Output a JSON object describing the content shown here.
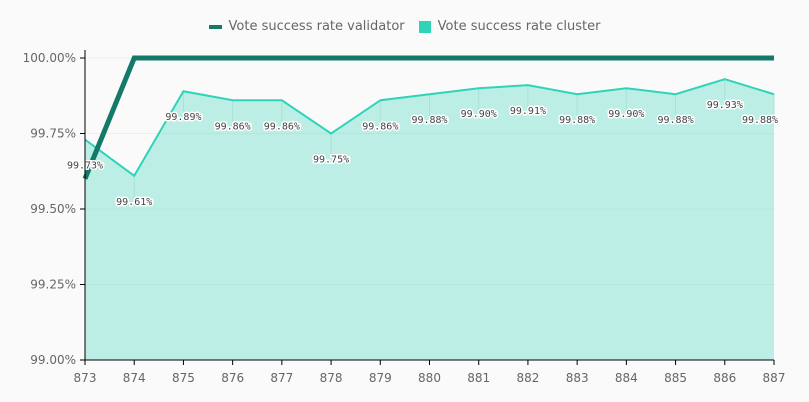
{
  "chart_data": {
    "type": "line",
    "title": "",
    "xlabel": "",
    "ylabel": "",
    "categories": [
      "873",
      "874",
      "875",
      "876",
      "877",
      "878",
      "879",
      "880",
      "881",
      "882",
      "883",
      "884",
      "885",
      "886",
      "887"
    ],
    "ylim": [
      99.0,
      100.0
    ],
    "yticks": [
      99.0,
      99.25,
      99.5,
      99.75,
      100.0
    ],
    "ytick_labels": [
      "99.00%",
      "99.25%",
      "99.50%",
      "99.75%",
      "100.00%"
    ],
    "legend_position": "top-center",
    "series": [
      {
        "name": "Vote success rate validator",
        "color": "#137a6a",
        "style": "line",
        "values": [
          99.6,
          100,
          100,
          100,
          100,
          100,
          100,
          100,
          100,
          100,
          100,
          100,
          100,
          100,
          100
        ]
      },
      {
        "name": "Vote success rate cluster",
        "color": "#2fd4b8",
        "style": "area",
        "values": [
          99.73,
          99.61,
          99.89,
          99.86,
          99.86,
          99.75,
          99.86,
          99.88,
          99.9,
          99.91,
          99.88,
          99.9,
          99.88,
          99.93,
          99.88
        ],
        "labels": [
          "99.73%",
          "99.61%",
          "99.89%",
          "99.86%",
          "99.86%",
          "99.75%",
          "99.86%",
          "99.88%",
          "99.90%",
          "99.91%",
          "99.88%",
          "99.90%",
          "99.88%",
          "99.93%",
          "99.88%"
        ]
      }
    ]
  }
}
